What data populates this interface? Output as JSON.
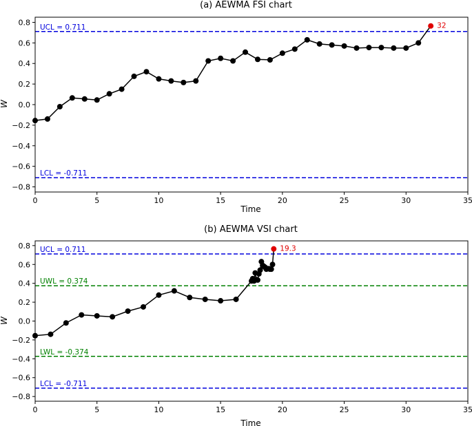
{
  "chart_data": [
    {
      "type": "line",
      "title": "(a)  AEWMA FSI chart",
      "xlabel": "Time",
      "ylabel": "W",
      "xlim": [
        0,
        35
      ],
      "ylim": [
        -0.85,
        0.85
      ],
      "xticks": [
        0,
        5,
        10,
        15,
        20,
        25,
        30,
        35
      ],
      "yticks": [
        -0.8,
        -0.6,
        -0.4,
        -0.2,
        0.0,
        0.2,
        0.4,
        0.6,
        0.8
      ],
      "grid": false,
      "series": [
        {
          "x": [
            0,
            1,
            2,
            3,
            4,
            5,
            6,
            7,
            8,
            9,
            10,
            11,
            12,
            13,
            14,
            15,
            16,
            17,
            18,
            19,
            20,
            21,
            22,
            23,
            24,
            25,
            26,
            27,
            28,
            29,
            30,
            31
          ],
          "y": [
            -0.155,
            -0.14,
            -0.02,
            0.065,
            0.055,
            0.045,
            0.105,
            0.15,
            0.275,
            0.32,
            0.25,
            0.23,
            0.215,
            0.23,
            0.425,
            0.45,
            0.425,
            0.51,
            0.44,
            0.435,
            0.5,
            0.54,
            0.63,
            0.59,
            0.58,
            0.57,
            0.55,
            0.555,
            0.555,
            0.55,
            0.55,
            0.6
          ],
          "color": "#000000"
        }
      ],
      "signal_point": {
        "x": 32,
        "y": 0.765,
        "label": "32",
        "color": "#e00000"
      },
      "limits": [
        {
          "label": "UCL = 0.711",
          "value": 0.711,
          "color": "#0000dd"
        },
        {
          "label": "LCL = -0.711",
          "value": -0.711,
          "color": "#0000dd"
        }
      ]
    },
    {
      "type": "line",
      "title": "(b)  AEWMA VSI chart",
      "xlabel": "Time",
      "ylabel": "W",
      "xlim": [
        0,
        35
      ],
      "ylim": [
        -0.85,
        0.85
      ],
      "xticks": [
        0,
        5,
        10,
        15,
        20,
        25,
        30,
        35
      ],
      "yticks": [
        -0.8,
        -0.6,
        -0.4,
        -0.2,
        0.0,
        0.2,
        0.4,
        0.6,
        0.8
      ],
      "grid": false,
      "series": [
        {
          "x": [
            0,
            1.25,
            2.5,
            3.75,
            5.0,
            6.25,
            7.5,
            8.75,
            10.0,
            11.25,
            12.5,
            13.75,
            15.0,
            16.25,
            17.5,
            17.6,
            17.7,
            17.8,
            17.9,
            18.0,
            18.1,
            18.2,
            18.3,
            18.4,
            18.5,
            18.6,
            18.7,
            18.8,
            18.9,
            19.0,
            19.1,
            19.2
          ],
          "y": [
            -0.155,
            -0.14,
            -0.02,
            0.065,
            0.055,
            0.045,
            0.105,
            0.15,
            0.275,
            0.32,
            0.25,
            0.23,
            0.215,
            0.23,
            0.425,
            0.45,
            0.425,
            0.51,
            0.44,
            0.435,
            0.5,
            0.54,
            0.63,
            0.59,
            0.58,
            0.57,
            0.55,
            0.555,
            0.555,
            0.55,
            0.55,
            0.6
          ],
          "color": "#000000"
        }
      ],
      "signal_point": {
        "x": 19.3,
        "y": 0.765,
        "label": "19.3",
        "color": "#e00000"
      },
      "limits": [
        {
          "label": "UCL = 0.711",
          "value": 0.711,
          "color": "#0000dd"
        },
        {
          "label": "UWL = 0.374",
          "value": 0.374,
          "color": "#008000"
        },
        {
          "label": "LWL = -0.374",
          "value": -0.374,
          "color": "#008000"
        },
        {
          "label": "LCL = -0.711",
          "value": -0.711,
          "color": "#0000dd"
        }
      ]
    }
  ]
}
